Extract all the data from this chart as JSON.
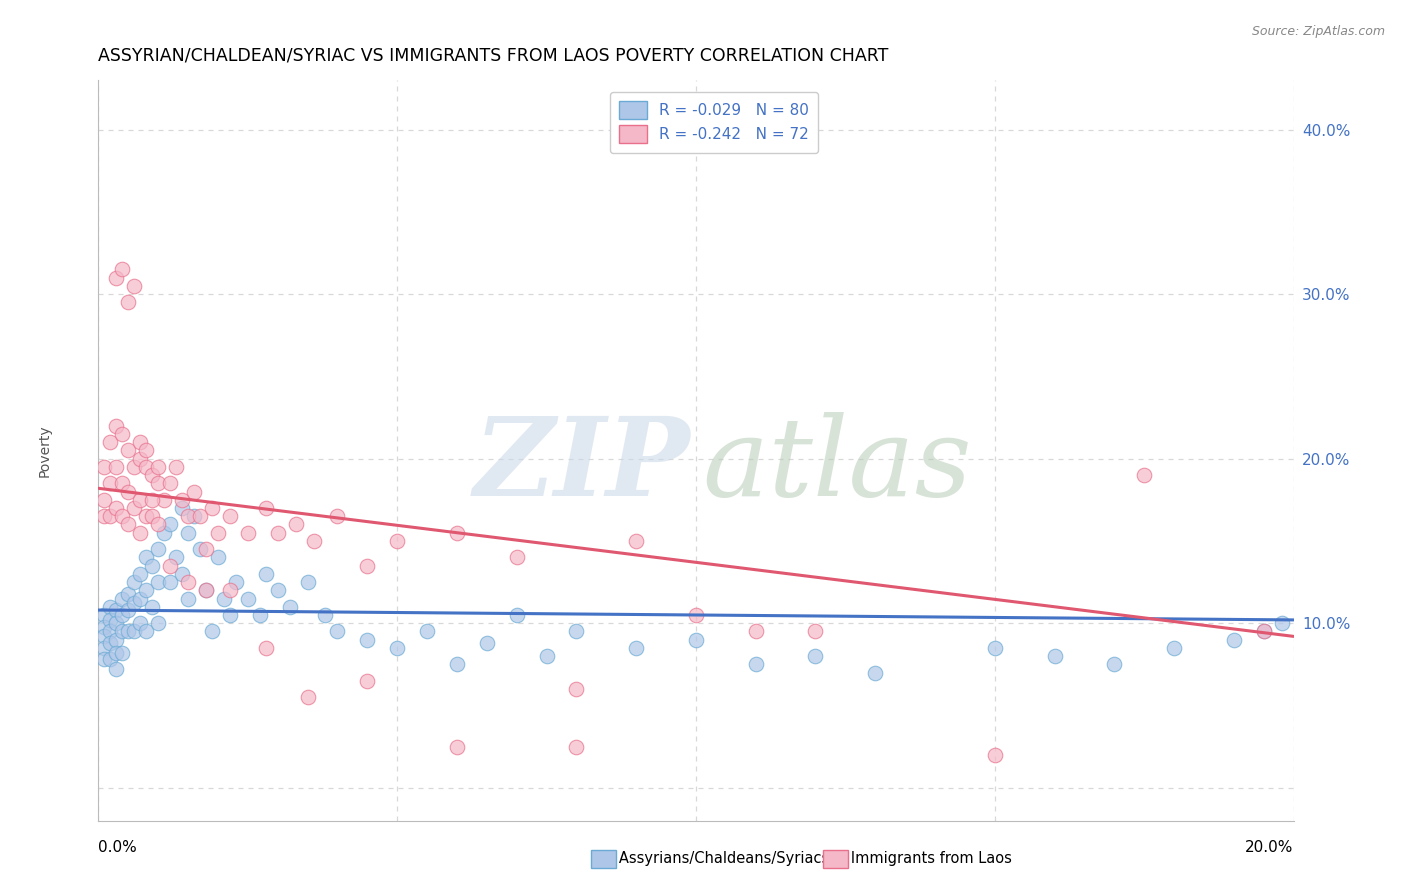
{
  "title": "ASSYRIAN/CHALDEAN/SYRIAC VS IMMIGRANTS FROM LAOS POVERTY CORRELATION CHART",
  "source": "Source: ZipAtlas.com",
  "ylabel": "Poverty",
  "xlim": [
    0.0,
    0.2
  ],
  "ylim": [
    -0.02,
    0.43
  ],
  "yticks": [
    0.0,
    0.1,
    0.2,
    0.3,
    0.4
  ],
  "ytick_labels": [
    "",
    "10.0%",
    "20.0%",
    "30.0%",
    "40.0%"
  ],
  "xtick_labels": [
    "0.0%",
    "20.0%"
  ],
  "legend_r1": "R = -0.029   N = 80",
  "legend_r2": "R = -0.242   N = 72",
  "label_blue": "Assyrians/Chaldeans/Syriacs",
  "label_pink": "Immigrants from Laos",
  "color_blue_fill": "#aec6e8",
  "color_pink_fill": "#f5b8c8",
  "color_blue_edge": "#6aaad4",
  "color_pink_edge": "#e8708a",
  "color_blue_line": "#4472c4",
  "color_pink_line": "#e05870",
  "color_ytick": "#4472c4",
  "bg_color": "#ffffff",
  "grid_color": "#d8d8d8",
  "grid_style": "--",
  "title_fontsize": 12.5,
  "legend_fontsize": 11,
  "tick_fontsize": 11,
  "ylabel_fontsize": 10,
  "blue_x": [
    0.001,
    0.001,
    0.001,
    0.001,
    0.001,
    0.002,
    0.002,
    0.002,
    0.002,
    0.002,
    0.003,
    0.003,
    0.003,
    0.003,
    0.003,
    0.004,
    0.004,
    0.004,
    0.004,
    0.005,
    0.005,
    0.005,
    0.006,
    0.006,
    0.006,
    0.007,
    0.007,
    0.007,
    0.008,
    0.008,
    0.008,
    0.009,
    0.009,
    0.01,
    0.01,
    0.01,
    0.011,
    0.012,
    0.012,
    0.013,
    0.014,
    0.014,
    0.015,
    0.015,
    0.016,
    0.017,
    0.018,
    0.019,
    0.02,
    0.021,
    0.022,
    0.023,
    0.025,
    0.027,
    0.028,
    0.03,
    0.032,
    0.035,
    0.038,
    0.04,
    0.045,
    0.05,
    0.055,
    0.06,
    0.065,
    0.07,
    0.075,
    0.08,
    0.09,
    0.1,
    0.11,
    0.12,
    0.13,
    0.15,
    0.16,
    0.17,
    0.18,
    0.19,
    0.195,
    0.198
  ],
  "blue_y": [
    0.105,
    0.098,
    0.092,
    0.085,
    0.078,
    0.11,
    0.102,
    0.095,
    0.088,
    0.078,
    0.108,
    0.1,
    0.09,
    0.082,
    0.072,
    0.115,
    0.105,
    0.095,
    0.082,
    0.118,
    0.108,
    0.095,
    0.125,
    0.112,
    0.095,
    0.13,
    0.115,
    0.1,
    0.14,
    0.12,
    0.095,
    0.135,
    0.11,
    0.145,
    0.125,
    0.1,
    0.155,
    0.16,
    0.125,
    0.14,
    0.17,
    0.13,
    0.155,
    0.115,
    0.165,
    0.145,
    0.12,
    0.095,
    0.14,
    0.115,
    0.105,
    0.125,
    0.115,
    0.105,
    0.13,
    0.12,
    0.11,
    0.125,
    0.105,
    0.095,
    0.09,
    0.085,
    0.095,
    0.075,
    0.088,
    0.105,
    0.08,
    0.095,
    0.085,
    0.09,
    0.075,
    0.08,
    0.07,
    0.085,
    0.08,
    0.075,
    0.085,
    0.09,
    0.095,
    0.1
  ],
  "pink_x": [
    0.001,
    0.001,
    0.001,
    0.002,
    0.002,
    0.002,
    0.003,
    0.003,
    0.003,
    0.004,
    0.004,
    0.004,
    0.005,
    0.005,
    0.005,
    0.006,
    0.006,
    0.007,
    0.007,
    0.007,
    0.008,
    0.008,
    0.009,
    0.009,
    0.01,
    0.01,
    0.011,
    0.012,
    0.013,
    0.014,
    0.015,
    0.016,
    0.017,
    0.018,
    0.019,
    0.02,
    0.022,
    0.025,
    0.028,
    0.03,
    0.033,
    0.036,
    0.04,
    0.045,
    0.05,
    0.06,
    0.07,
    0.08,
    0.09,
    0.1,
    0.11,
    0.12,
    0.003,
    0.004,
    0.005,
    0.006,
    0.007,
    0.008,
    0.009,
    0.01,
    0.012,
    0.015,
    0.018,
    0.022,
    0.028,
    0.035,
    0.045,
    0.06,
    0.08,
    0.15,
    0.175,
    0.195
  ],
  "pink_y": [
    0.195,
    0.175,
    0.165,
    0.21,
    0.185,
    0.165,
    0.22,
    0.195,
    0.17,
    0.215,
    0.185,
    0.165,
    0.205,
    0.18,
    0.16,
    0.195,
    0.17,
    0.2,
    0.175,
    0.155,
    0.195,
    0.165,
    0.19,
    0.165,
    0.185,
    0.16,
    0.175,
    0.185,
    0.195,
    0.175,
    0.165,
    0.18,
    0.165,
    0.145,
    0.17,
    0.155,
    0.165,
    0.155,
    0.17,
    0.155,
    0.16,
    0.15,
    0.165,
    0.135,
    0.15,
    0.155,
    0.14,
    0.06,
    0.15,
    0.105,
    0.095,
    0.095,
    0.31,
    0.315,
    0.295,
    0.305,
    0.21,
    0.205,
    0.175,
    0.195,
    0.135,
    0.125,
    0.12,
    0.12,
    0.085,
    0.055,
    0.065,
    0.025,
    0.025,
    0.02,
    0.19,
    0.095
  ],
  "blue_trend_x": [
    0.0,
    0.2
  ],
  "blue_trend_y": [
    0.108,
    0.102
  ],
  "pink_trend_x": [
    0.0,
    0.2
  ],
  "pink_trend_y": [
    0.182,
    0.092
  ]
}
